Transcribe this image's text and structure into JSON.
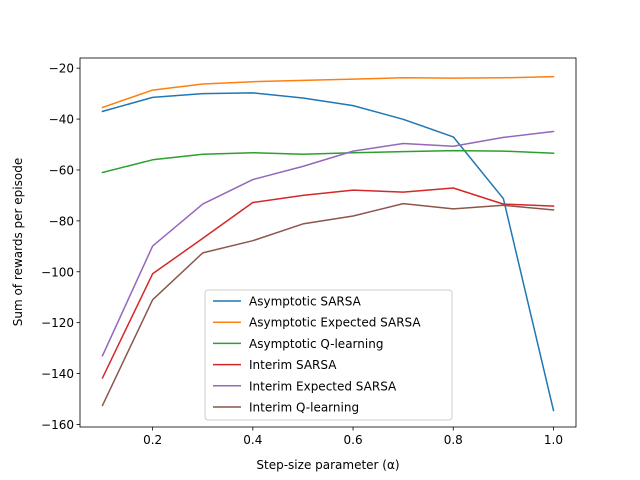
{
  "chart_data": {
    "type": "line",
    "title": "",
    "xlabel": "Step-size parameter (α)",
    "ylabel": "Sum of rewards per episode",
    "xlim": [
      0.055,
      1.045
    ],
    "ylim": [
      -161,
      -16
    ],
    "xticks": [
      0.2,
      0.4,
      0.6,
      0.8,
      1.0
    ],
    "xtick_labels": [
      "0.2",
      "0.4",
      "0.6",
      "0.8",
      "1.0"
    ],
    "yticks": [
      -160,
      -140,
      -120,
      -100,
      -80,
      -60,
      -40,
      -20
    ],
    "ytick_labels": [
      "−160",
      "−140",
      "−120",
      "−100",
      "−80",
      "−60",
      "−40",
      "−20"
    ],
    "grid": false,
    "legend_position": "lower-center",
    "x": [
      0.1,
      0.2,
      0.3,
      0.4,
      0.5,
      0.6,
      0.7,
      0.8,
      0.9,
      1.0
    ],
    "series": [
      {
        "name": "Asymptotic SARSA",
        "color": "#1f77b4",
        "values": [
          -37,
          -31.5,
          -30,
          -29.7,
          -31.7,
          -34.7,
          -40.1,
          -47,
          -71.3,
          -154.5
        ]
      },
      {
        "name": "Asymptotic Expected SARSA",
        "color": "#ff7f0e",
        "values": [
          -35.4,
          -28.6,
          -26.2,
          -25.3,
          -24.8,
          -24.3,
          -23.8,
          -23.9,
          -23.8,
          -23.3
        ]
      },
      {
        "name": "Asymptotic Q-learning",
        "color": "#2ca02c",
        "values": [
          -61,
          -56,
          -53.8,
          -53.2,
          -53.8,
          -53.2,
          -52.8,
          -52.4,
          -52.6,
          -53.4
        ]
      },
      {
        "name": "Interim SARSA",
        "color": "#d62728",
        "values": [
          -141.7,
          -100.8,
          -86.9,
          -72.8,
          -70,
          -67.9,
          -68.7,
          -67.1,
          -73.4,
          -74.2
        ]
      },
      {
        "name": "Interim Expected SARSA",
        "color": "#9467bd",
        "values": [
          -133,
          -89.9,
          -73.4,
          -63.8,
          -58.6,
          -52.6,
          -49.6,
          -50.7,
          -47.2,
          -44.9
        ]
      },
      {
        "name": "Interim Q-learning",
        "color": "#8c564b",
        "values": [
          -152.5,
          -111,
          -92.6,
          -87.8,
          -81.2,
          -78.1,
          -73.2,
          -75.3,
          -73.9,
          -75.7
        ]
      }
    ]
  }
}
